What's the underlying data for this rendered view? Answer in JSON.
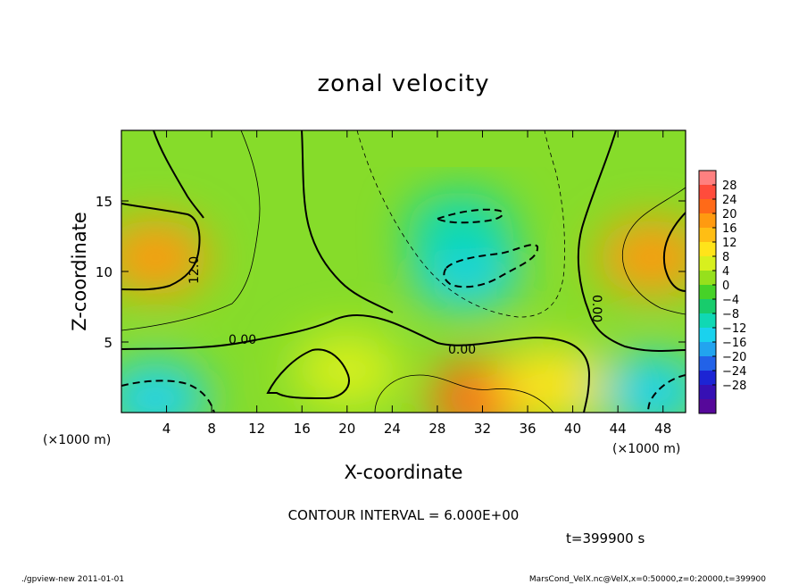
{
  "chart_data": {
    "type": "heatmap",
    "title": "zonal velocity",
    "xlabel": "X-coordinate",
    "ylabel": "Z-coordinate",
    "xunit": "(×1000 m)",
    "yunit": "(×1000 m)",
    "xlim": [
      0,
      50
    ],
    "ylim": [
      0,
      20
    ],
    "xticks": [
      4,
      8,
      12,
      16,
      20,
      24,
      28,
      32,
      36,
      40,
      44,
      48
    ],
    "yticks": [
      5,
      10,
      15
    ],
    "colorbar": {
      "ticks": [
        28,
        24,
        20,
        16,
        12,
        8,
        4,
        0,
        -4,
        -8,
        -12,
        -16,
        -20,
        -24,
        -28
      ],
      "tick_labels": [
        "28",
        "24",
        "20",
        "16",
        "12",
        "8",
        "4",
        "0",
        "−4",
        "−8",
        "−12",
        "−16",
        "−20",
        "−24",
        "−28"
      ],
      "colors": [
        "#ff8080",
        "#ff4c3c",
        "#ff6a18",
        "#ff9a10",
        "#ffbe14",
        "#ffe41a",
        "#d8f01e",
        "#96e01c",
        "#46d228",
        "#18cc6c",
        "#10d8b4",
        "#1ad2ee",
        "#22a4ef",
        "#2262e8",
        "#1c24d4",
        "#3610b4",
        "#56089a"
      ]
    },
    "contour_interval_text": "CONTOUR INTERVAL = 6.000E+00",
    "contour_labels": [
      "12.0",
      "0.00",
      "0.00",
      "0.00"
    ],
    "time_text": "t=399900 s",
    "features": [
      {
        "x": 3,
        "z": 11,
        "value": 16
      },
      {
        "x": 47,
        "z": 11,
        "value": 15
      },
      {
        "x": 32,
        "z": 1,
        "value": 20
      },
      {
        "x": 3,
        "z": 1,
        "value": -16
      },
      {
        "x": 47,
        "z": 1.5,
        "value": -14
      },
      {
        "x": 30.5,
        "z": 10,
        "value": -15
      },
      {
        "x": 30,
        "z": 13,
        "value": -12
      },
      {
        "x": 20,
        "z": 3,
        "value": 5
      },
      {
        "x": 38,
        "z": 2,
        "value": 10
      }
    ]
  },
  "footer": {
    "left": "./gpview-new  2011-01-01",
    "right": "MarsCond_VelX.nc@VelX,x=0:50000,z=0:20000,t=399900"
  }
}
